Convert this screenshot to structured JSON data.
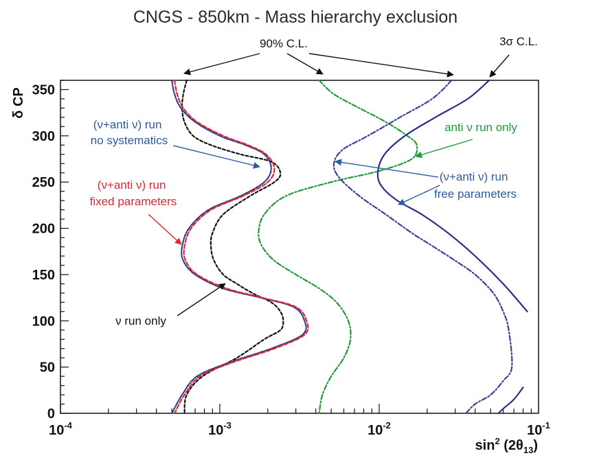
{
  "chart_data": {
    "type": "line",
    "title": "CNGS - 850km - Mass hierarchy exclusion",
    "xlabel": "sin² (2θ₁₃)",
    "xlabel_parts": {
      "main": "sin",
      "sup": "2",
      "open": " (2θ",
      "sub": "13",
      "close": ")"
    },
    "ylabel": "δ CP",
    "xscale": "log",
    "xlim": [
      0.0001,
      0.1
    ],
    "ylim": [
      0,
      360
    ],
    "grid": false,
    "x_ticks": [
      {
        "base": "10",
        "exp": "-4",
        "value": 0.0001
      },
      {
        "base": "10",
        "exp": "-3",
        "value": 0.001
      },
      {
        "base": "10",
        "exp": "-2",
        "value": 0.01
      },
      {
        "base": "10",
        "exp": "-1",
        "value": 0.1
      }
    ],
    "y_ticks": [
      "0",
      "50",
      "100",
      "150",
      "200",
      "250",
      "300",
      "350"
    ],
    "series": [
      {
        "name": "ν run only (90% C.L.)",
        "color": "#111111",
        "dash": "4,3",
        "x": [
          0.00062,
          0.00059,
          0.00058,
          0.0006,
          0.00068,
          0.00088,
          0.00135,
          0.0021,
          0.0024,
          0.0022,
          0.00155,
          0.00105,
          0.0009,
          0.00088,
          0.00092,
          0.00105,
          0.00128,
          0.0016,
          0.0021,
          0.0024,
          0.0025,
          0.0024,
          0.0019,
          0.00128,
          0.00078,
          0.00062,
          0.0006
        ],
        "y": [
          360,
          345,
          330,
          315,
          300,
          290,
          280,
          272,
          260,
          250,
          235,
          215,
          195,
          180,
          165,
          150,
          140,
          130,
          120,
          110,
          100,
          90,
          80,
          60,
          40,
          20,
          0
        ]
      },
      {
        "name": "(ν+anti ν) run no systematics (90% C.L.)",
        "color": "#2c3e8f",
        "dash": "5,2,1,2",
        "x": [
          0.0005,
          0.00052,
          0.00057,
          0.0007,
          0.001,
          0.00145,
          0.0019,
          0.0021,
          0.0019,
          0.00135,
          0.00085,
          0.00064,
          0.00058,
          0.00059,
          0.0007,
          0.00105,
          0.0018,
          0.0029,
          0.0034,
          0.0033,
          0.0021,
          0.00115,
          0.00072,
          0.00058,
          0.0005
        ],
        "y": [
          360,
          345,
          330,
          315,
          300,
          290,
          280,
          265,
          250,
          235,
          220,
          200,
          180,
          165,
          150,
          135,
          125,
          115,
          100,
          85,
          70,
          55,
          40,
          20,
          0
        ]
      },
      {
        "name": "(ν+anti ν) run fixed parameters (90% C.L.)",
        "color": "#e5252f",
        "dash": "6,3",
        "x": [
          0.00052,
          0.00054,
          0.00059,
          0.00072,
          0.00105,
          0.0015,
          0.00195,
          0.0022,
          0.002,
          0.0014,
          0.00088,
          0.00066,
          0.0006,
          0.00061,
          0.00072,
          0.0011,
          0.00185,
          0.003,
          0.0035,
          0.0034,
          0.0022,
          0.0012,
          0.00075,
          0.0006,
          0.00052
        ],
        "y": [
          360,
          345,
          330,
          315,
          300,
          290,
          280,
          265,
          250,
          235,
          220,
          200,
          180,
          165,
          150,
          135,
          125,
          115,
          100,
          85,
          70,
          55,
          40,
          20,
          0
        ]
      },
      {
        "name": "anti ν run only (90% C.L.)",
        "color": "#1e9a3a",
        "dash": "7,3,2,3",
        "x": [
          0.0042,
          0.0052,
          0.0075,
          0.011,
          0.015,
          0.0172,
          0.016,
          0.01,
          0.005,
          0.0026,
          0.0019,
          0.00175,
          0.00185,
          0.0022,
          0.003,
          0.0042,
          0.0054,
          0.0064,
          0.0066,
          0.006,
          0.005,
          0.0044,
          0.0042
        ],
        "y": [
          360,
          345,
          330,
          315,
          300,
          290,
          275,
          262,
          250,
          235,
          215,
          195,
          180,
          165,
          150,
          135,
          120,
          100,
          80,
          60,
          40,
          20,
          0
        ]
      },
      {
        "name": "(ν+anti ν) run free parameters (90% C.L.)",
        "color": "#3b3f9a",
        "dash": "7,3,2,3",
        "x": [
          0.0285,
          0.0215,
          0.0135,
          0.0085,
          0.0059,
          0.0052,
          0.0056,
          0.0075,
          0.011,
          0.016,
          0.022,
          0.03,
          0.04,
          0.052,
          0.06,
          0.065,
          0.068,
          0.06,
          0.05,
          0.04,
          0.035
        ],
        "y": [
          360,
          340,
          320,
          300,
          285,
          270,
          255,
          235,
          215,
          195,
          180,
          165,
          150,
          130,
          110,
          90,
          50,
          35,
          20,
          10,
          0
        ]
      },
      {
        "name": "(ν+anti ν) run free parameters (3σ C.L.)",
        "color": "#2a2f85",
        "dash": "",
        "x": [
          0.049,
          0.036,
          0.0225,
          0.0145,
          0.0108,
          0.0098,
          0.0104,
          0.013,
          0.0185,
          0.027,
          0.04,
          0.06,
          0.085
        ],
        "y": [
          360,
          340,
          320,
          300,
          280,
          260,
          245,
          230,
          215,
          195,
          170,
          140,
          110
        ]
      },
      {
        "name": "(ν+anti ν) run free parameters (3σ C.L., low branch)",
        "color": "#2a2f85",
        "dash": "",
        "x": [
          0.08,
          0.07,
          0.06,
          0.056
        ],
        "y": [
          28,
          15,
          5,
          0
        ]
      }
    ],
    "annotations": [
      {
        "id": "cl90",
        "text": "90% C.L.",
        "color": "#111111"
      },
      {
        "id": "cl3s",
        "text": "3σ C.L.",
        "color": "#111111"
      },
      {
        "id": "nosys",
        "lines": [
          "(ν+anti ν) run",
          "no systematics"
        ],
        "color": "#2c5aa0"
      },
      {
        "id": "fixed",
        "lines": [
          "(ν+anti ν) run",
          "fixed parameters"
        ],
        "color": "#e5252f"
      },
      {
        "id": "antionly",
        "lines": [
          "anti ν run only"
        ],
        "color": "#1e9a3a"
      },
      {
        "id": "free",
        "lines": [
          "(ν+anti ν) run",
          "free parameters"
        ],
        "color": "#2c5aa0"
      },
      {
        "id": "nuonly",
        "lines": [
          "ν run only"
        ],
        "color": "#111111"
      }
    ]
  }
}
